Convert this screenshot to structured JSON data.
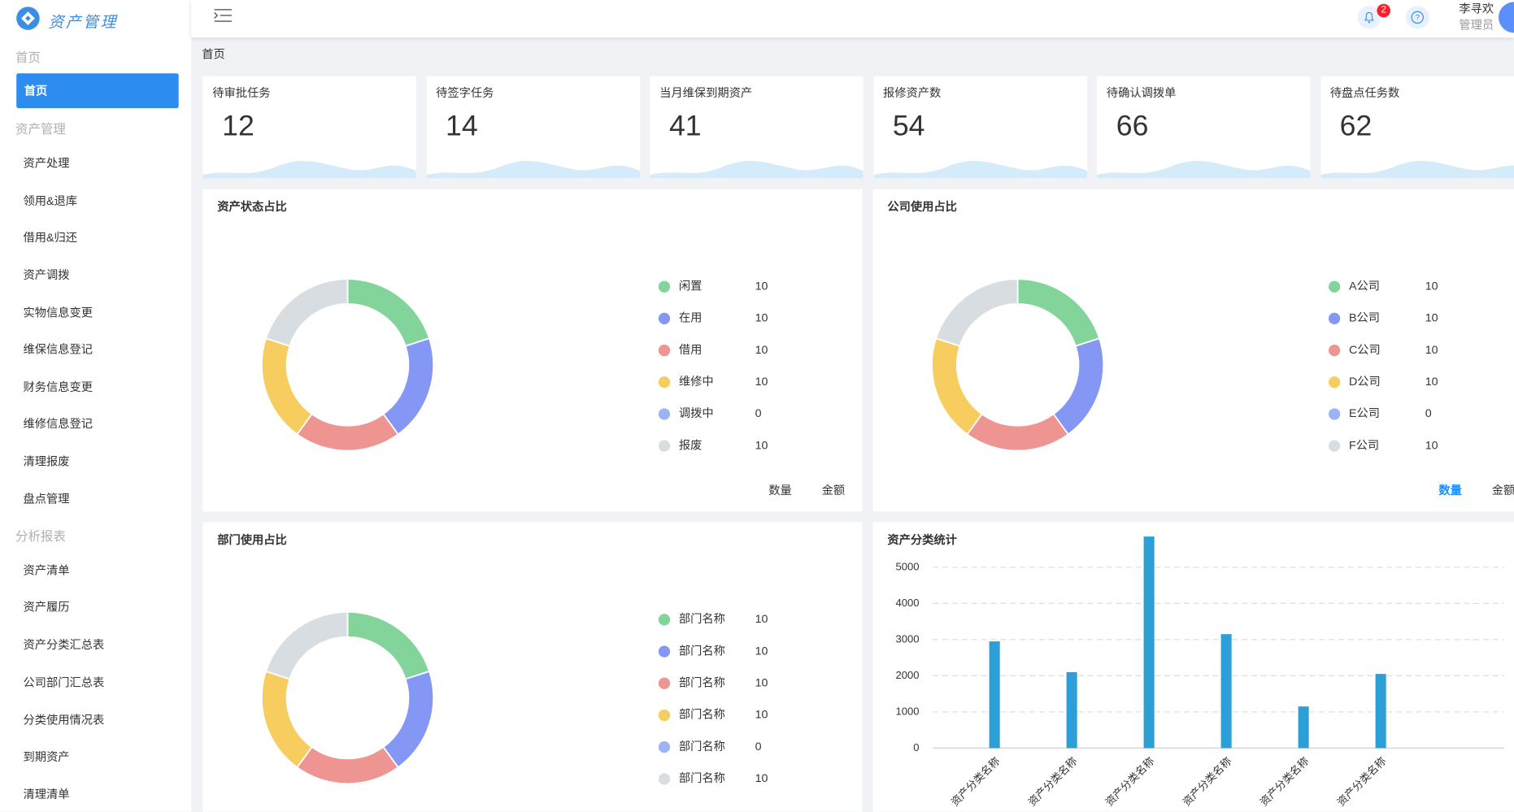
{
  "brand": "资产管理",
  "sidebar": [
    {
      "title": "首页",
      "items": [
        "首页"
      ]
    },
    {
      "title": "资产管理",
      "items": [
        "资产处理",
        "领用&退库",
        "借用&归还",
        "资产调拨",
        "实物信息变更",
        "维保信息登记",
        "财务信息变更",
        "维修信息登记",
        "清理报废",
        "盘点管理"
      ]
    },
    {
      "title": "分析报表",
      "items": [
        "资产清单",
        "资产履历",
        "资产分类汇总表",
        "公司部门汇总表",
        "分类使用情况表",
        "到期资产",
        "清理清单"
      ]
    }
  ],
  "header": {
    "notification_count": 2,
    "user_name": "李寻欢",
    "user_role": "管理员"
  },
  "breadcrumb": "首页",
  "stats": [
    {
      "label": "待审批任务",
      "value": 12
    },
    {
      "label": "待签字任务",
      "value": 14
    },
    {
      "label": "当月维保到期资产",
      "value": 41
    },
    {
      "label": "报修资产数",
      "value": 54
    },
    {
      "label": "待确认调拨单",
      "value": 66
    },
    {
      "label": "待盘点任务数",
      "value": 62
    }
  ],
  "chart_data": [
    {
      "type": "pie",
      "title": "资产状态占比",
      "categories": [
        "闲置",
        "在用",
        "借用",
        "维修中",
        "调拨中",
        "报废"
      ],
      "values": [
        10,
        10,
        10,
        10,
        0,
        10
      ],
      "colors": [
        "#82d49a",
        "#8497f5",
        "#ef9591",
        "#f6cd5e",
        "#9db3f5",
        "#d8dde1"
      ],
      "toggles": [
        "数量",
        "金额"
      ],
      "toggle_color": "#333333"
    },
    {
      "type": "pie",
      "title": "公司使用占比",
      "categories": [
        "A公司",
        "B公司",
        "C公司",
        "D公司",
        "E公司",
        "F公司"
      ],
      "values": [
        10,
        10,
        10,
        10,
        0,
        10
      ],
      "colors": [
        "#82d49a",
        "#8497f5",
        "#ef9591",
        "#f6cd5e",
        "#9db3f5",
        "#d8dde1"
      ],
      "toggles": [
        "数量",
        "金额"
      ],
      "toggle_color": "#1890ff"
    },
    {
      "type": "pie",
      "title": "部门使用占比",
      "categories": [
        "部门名称",
        "部门名称",
        "部门名称",
        "部门名称",
        "部门名称",
        "部门名称"
      ],
      "values": [
        10,
        10,
        10,
        10,
        0,
        10
      ],
      "colors": [
        "#82d49a",
        "#8497f5",
        "#ef9591",
        "#f6cd5e",
        "#9db3f5",
        "#d8dde1"
      ]
    },
    {
      "type": "bar",
      "title": "资产分类统计",
      "categories": [
        "资产分类名称",
        "资产分类名称",
        "资产分类名称",
        "资产分类名称",
        "资产分类名称",
        "资产分类名称"
      ],
      "values": [
        2950,
        2100,
        5850,
        3150,
        1150,
        2050
      ],
      "color": "#2b9fd6",
      "ylim": [
        0,
        5900
      ],
      "yticks": [
        0,
        1000,
        2000,
        3000,
        4000,
        5000
      ],
      "grid": true
    }
  ]
}
